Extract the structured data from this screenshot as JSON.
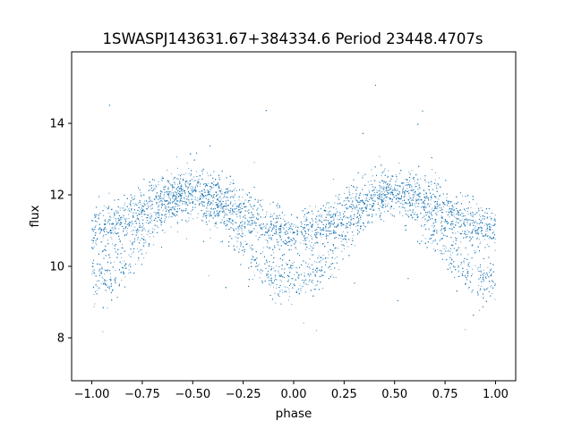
{
  "chart_data": {
    "type": "scatter",
    "title": "1SWASPJ143631.67+384334.6 Period 23448.4707s",
    "xlabel": "phase",
    "ylabel": "flux",
    "xlim": [
      -1.1,
      1.1
    ],
    "ylim": [
      6.8,
      16.0
    ],
    "x_ticks": [
      -1.0,
      -0.75,
      -0.5,
      -0.25,
      0.0,
      0.25,
      0.5,
      0.75,
      1.0
    ],
    "x_tick_labels": [
      "−1.00",
      "−0.75",
      "−0.50",
      "−0.25",
      "0.00",
      "0.25",
      "0.50",
      "0.75",
      "1.00"
    ],
    "y_ticks": [
      8,
      10,
      12,
      14
    ],
    "y_tick_labels": [
      "8",
      "10",
      "12",
      "14"
    ],
    "grid": false,
    "legend": "none",
    "marker_color": "#1f77b4",
    "series": [
      {
        "description_of_trend": "phase-folded light curve, two maxima near phase ±0.5, minima near phase 0 and ±1",
        "x": [
          -1.0,
          -0.9,
          -0.8,
          -0.7,
          -0.6,
          -0.5,
          -0.4,
          -0.3,
          -0.2,
          -0.1,
          0.0,
          0.1,
          0.2,
          0.3,
          0.4,
          0.5,
          0.6,
          0.7,
          0.8,
          0.9,
          1.0
        ],
        "y_upper_branch": [
          11.0,
          11.1,
          11.4,
          11.8,
          12.0,
          12.1,
          12.0,
          11.7,
          11.3,
          11.0,
          10.9,
          11.0,
          11.3,
          11.7,
          12.0,
          12.1,
          12.0,
          11.8,
          11.4,
          11.1,
          11.0
        ],
        "y_lower_branch": [
          9.6,
          9.7,
          10.3,
          11.2,
          11.8,
          12.0,
          11.7,
          11.0,
          10.2,
          9.7,
          9.6,
          9.7,
          10.3,
          11.2,
          11.8,
          12.0,
          11.7,
          11.0,
          10.2,
          9.7,
          9.6
        ]
      }
    ]
  }
}
